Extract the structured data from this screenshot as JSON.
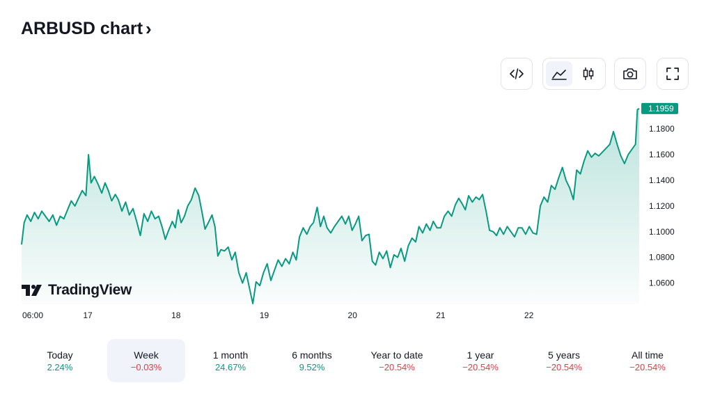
{
  "header": {
    "title": "ARBUSD chart",
    "chevron": "›"
  },
  "toolbar": {
    "embed_icon": "code-icon",
    "line_icon": "line-chart-icon",
    "candle_icon": "candlestick-icon",
    "snapshot_icon": "camera-icon",
    "fullscreen_icon": "fullscreen-icon"
  },
  "watermark": {
    "text": "TradingView"
  },
  "periods": [
    {
      "label": "Today",
      "value": "2.24%",
      "direction": "up"
    },
    {
      "label": "Week",
      "value": "−0.03%",
      "direction": "down",
      "active": true
    },
    {
      "label": "1 month",
      "value": "24.67%",
      "direction": "up"
    },
    {
      "label": "6 months",
      "value": "9.52%",
      "direction": "up"
    },
    {
      "label": "Year to date",
      "value": "−20.54%",
      "direction": "down"
    },
    {
      "label": "1 year",
      "value": "−20.54%",
      "direction": "down"
    },
    {
      "label": "5 years",
      "value": "−20.54%",
      "direction": "down"
    },
    {
      "label": "All time",
      "value": "−20.54%",
      "direction": "down"
    }
  ],
  "colors": {
    "line": "#089981",
    "up": "#089981",
    "down": "#f23645",
    "price_tag": "#089981"
  },
  "chart_data": {
    "type": "area",
    "title": "",
    "x_tick_labels": [
      {
        "label": "06:00",
        "t": 0
      },
      {
        "label": "17",
        "t": 18
      },
      {
        "label": "18",
        "t": 42
      },
      {
        "label": "19",
        "t": 66
      },
      {
        "label": "20",
        "t": 90
      },
      {
        "label": "21",
        "t": 114
      },
      {
        "label": "22",
        "t": 138
      }
    ],
    "y_tick_labels": [
      "1.0600",
      "1.0800",
      "1.1000",
      "1.1200",
      "1.1400",
      "1.1600",
      "1.1800"
    ],
    "y_ticks": [
      1.06,
      1.08,
      1.1,
      1.12,
      1.14,
      1.16,
      1.18
    ],
    "ylim": [
      1.0435,
      1.2045
    ],
    "last_price": "1.1959",
    "last_value": 1.1959,
    "series": [
      {
        "points": [
          [
            0,
            1.09
          ],
          [
            0.7,
            1.107
          ],
          [
            1.5,
            1.113
          ],
          [
            2.5,
            1.108
          ],
          [
            3.5,
            1.115
          ],
          [
            4.5,
            1.11
          ],
          [
            5.5,
            1.116
          ],
          [
            6.5,
            1.112
          ],
          [
            7.5,
            1.108
          ],
          [
            8.5,
            1.113
          ],
          [
            9.5,
            1.105
          ],
          [
            10.5,
            1.112
          ],
          [
            11.5,
            1.11
          ],
          [
            12.5,
            1.117
          ],
          [
            13.5,
            1.124
          ],
          [
            14.5,
            1.12
          ],
          [
            15.5,
            1.126
          ],
          [
            16.5,
            1.132
          ],
          [
            17.5,
            1.128
          ],
          [
            18.2,
            1.16
          ],
          [
            18.9,
            1.138
          ],
          [
            19.8,
            1.143
          ],
          [
            20.8,
            1.137
          ],
          [
            21.8,
            1.13
          ],
          [
            22.7,
            1.138
          ],
          [
            23.6,
            1.132
          ],
          [
            24.5,
            1.124
          ],
          [
            25.5,
            1.129
          ],
          [
            26.3,
            1.125
          ],
          [
            27.3,
            1.116
          ],
          [
            28.3,
            1.123
          ],
          [
            29.3,
            1.113
          ],
          [
            30.3,
            1.118
          ],
          [
            31.3,
            1.108
          ],
          [
            32.3,
            1.097
          ],
          [
            33.3,
            1.114
          ],
          [
            34.3,
            1.108
          ],
          [
            35.3,
            1.116
          ],
          [
            36.3,
            1.11
          ],
          [
            37.3,
            1.112
          ],
          [
            38.3,
            1.103
          ],
          [
            39.1,
            1.094
          ],
          [
            40,
            1.101
          ],
          [
            41,
            1.108
          ],
          [
            41.8,
            1.103
          ],
          [
            42.6,
            1.117
          ],
          [
            43.4,
            1.107
          ],
          [
            44.3,
            1.112
          ],
          [
            45.2,
            1.12
          ],
          [
            46.2,
            1.125
          ],
          [
            47.2,
            1.134
          ],
          [
            48.2,
            1.128
          ],
          [
            49.1,
            1.115
          ],
          [
            49.9,
            1.102
          ],
          [
            50.8,
            1.107
          ],
          [
            51.8,
            1.113
          ],
          [
            52.6,
            1.104
          ],
          [
            53.4,
            1.081
          ],
          [
            54.2,
            1.086
          ],
          [
            55.2,
            1.085
          ],
          [
            56.2,
            1.088
          ],
          [
            57.2,
            1.078
          ],
          [
            58.1,
            1.084
          ],
          [
            59.1,
            1.068
          ],
          [
            60.1,
            1.06
          ],
          [
            61.1,
            1.068
          ],
          [
            62,
            1.056
          ],
          [
            62.9,
            1.044
          ],
          [
            63.8,
            1.061
          ],
          [
            64.8,
            1.058
          ],
          [
            65.8,
            1.068
          ],
          [
            66.8,
            1.075
          ],
          [
            67.8,
            1.062
          ],
          [
            68.8,
            1.07
          ],
          [
            69.8,
            1.078
          ],
          [
            70.8,
            1.073
          ],
          [
            71.8,
            1.079
          ],
          [
            72.8,
            1.075
          ],
          [
            73.8,
            1.084
          ],
          [
            74.7,
            1.078
          ],
          [
            75.6,
            1.096
          ],
          [
            76.6,
            1.103
          ],
          [
            77.6,
            1.098
          ],
          [
            78.5,
            1.104
          ],
          [
            79.4,
            1.107
          ],
          [
            80.4,
            1.119
          ],
          [
            81.3,
            1.104
          ],
          [
            82.2,
            1.112
          ],
          [
            83.1,
            1.103
          ],
          [
            84.1,
            1.099
          ],
          [
            85.1,
            1.104
          ],
          [
            86.1,
            1.108
          ],
          [
            87.1,
            1.112
          ],
          [
            88.1,
            1.106
          ],
          [
            89,
            1.112
          ],
          [
            89.9,
            1.101
          ],
          [
            90.8,
            1.106
          ],
          [
            91.7,
            1.112
          ],
          [
            92.6,
            1.093
          ],
          [
            93.6,
            1.097
          ],
          [
            94.5,
            1.098
          ],
          [
            95.4,
            1.077
          ],
          [
            96.3,
            1.074
          ],
          [
            97.3,
            1.084
          ],
          [
            98.3,
            1.079
          ],
          [
            99.3,
            1.085
          ],
          [
            100.3,
            1.072
          ],
          [
            101.3,
            1.082
          ],
          [
            102.3,
            1.08
          ],
          [
            103.2,
            1.087
          ],
          [
            104.2,
            1.077
          ],
          [
            105.2,
            1.089
          ],
          [
            106.2,
            1.095
          ],
          [
            107.2,
            1.092
          ],
          [
            108.1,
            1.104
          ],
          [
            109.1,
            1.099
          ],
          [
            110.1,
            1.106
          ],
          [
            111.1,
            1.101
          ],
          [
            112,
            1.108
          ],
          [
            113,
            1.103
          ],
          [
            114,
            1.103
          ],
          [
            115,
            1.112
          ],
          [
            116,
            1.116
          ],
          [
            117,
            1.112
          ],
          [
            118,
            1.121
          ],
          [
            118.9,
            1.126
          ],
          [
            119.8,
            1.122
          ],
          [
            120.7,
            1.117
          ],
          [
            121.6,
            1.128
          ],
          [
            122.6,
            1.123
          ],
          [
            123.6,
            1.127
          ],
          [
            124.5,
            1.125
          ],
          [
            125.4,
            1.129
          ],
          [
            126.4,
            1.115
          ],
          [
            127.3,
            1.101
          ],
          [
            128.3,
            1.1
          ],
          [
            129.2,
            1.097
          ],
          [
            130.1,
            1.103
          ],
          [
            131.1,
            1.098
          ],
          [
            132.1,
            1.104
          ],
          [
            133.1,
            1.1
          ],
          [
            134.1,
            1.096
          ],
          [
            135.1,
            1.103
          ],
          [
            136.1,
            1.103
          ],
          [
            137.1,
            1.098
          ],
          [
            138.1,
            1.104
          ],
          [
            139.1,
            1.099
          ],
          [
            140.1,
            1.098
          ],
          [
            141.1,
            1.12
          ],
          [
            142.1,
            1.127
          ],
          [
            143.1,
            1.123
          ],
          [
            144.1,
            1.136
          ],
          [
            145.1,
            1.133
          ],
          [
            146.1,
            1.142
          ],
          [
            147.1,
            1.15
          ],
          [
            148.1,
            1.14
          ],
          [
            149.1,
            1.134
          ],
          [
            150.1,
            1.125
          ],
          [
            151,
            1.148
          ],
          [
            152,
            1.145
          ],
          [
            153,
            1.155
          ],
          [
            154,
            1.163
          ],
          [
            155,
            1.158
          ],
          [
            156,
            1.161
          ],
          [
            157,
            1.159
          ],
          [
            158,
            1.162
          ],
          [
            159,
            1.165
          ],
          [
            160,
            1.168
          ],
          [
            161,
            1.178
          ],
          [
            162,
            1.168
          ],
          [
            163,
            1.159
          ],
          [
            164,
            1.153
          ],
          [
            165,
            1.16
          ],
          [
            166,
            1.164
          ],
          [
            167,
            1.168
          ],
          [
            167.5,
            1.195
          ],
          [
            168,
            1.1959
          ]
        ]
      }
    ]
  }
}
